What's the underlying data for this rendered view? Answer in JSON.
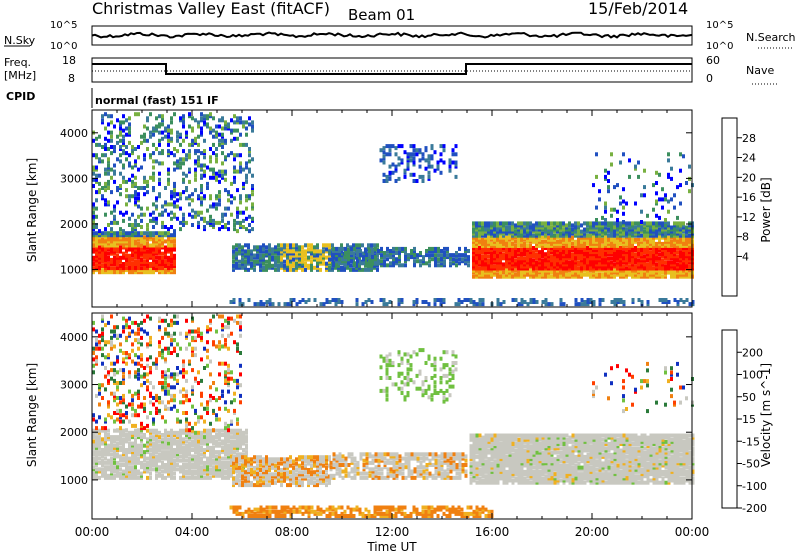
{
  "header": {
    "title": "Christmas Valley East (fitACF)",
    "beam": "Beam 01",
    "date": "15/Feb/2014"
  },
  "strip": {
    "nsky_label": "N.Sky",
    "nsky_ticks": [
      "10^5",
      "10^0"
    ],
    "nsearch_label": "N.Search",
    "nsearch_ticks": [
      "10^5",
      "10^0"
    ],
    "freq_label": "Freq.",
    "freq_unit": "[MHz]",
    "freq_ticks": [
      "18",
      "8"
    ],
    "nave_label": "Nave",
    "nave_ticks": [
      "60",
      "0"
    ],
    "cpid_label": "CPID",
    "cpid_value": "normal (fast) 151 IF"
  },
  "chart_data": [
    {
      "type": "heatmap",
      "name": "power",
      "ylabel": "Slant Range [km]",
      "yticks": [
        "4000",
        "3000",
        "2000",
        "1000"
      ],
      "ylim": [
        180,
        4500
      ],
      "xlim_hours": [
        0,
        24
      ],
      "colorbar": {
        "label": "Power [dB]",
        "ticks": [
          "28",
          "24",
          "20",
          "16",
          "12",
          "8",
          "4"
        ],
        "colors": [
          "#0000ff",
          "#2050c0",
          "#3a7a9a",
          "#3c8f5e",
          "#78b040",
          "#e8c020",
          "#f08010",
          "#ff3000",
          "#ff0000"
        ]
      }
    },
    {
      "type": "heatmap",
      "name": "velocity",
      "ylabel": "Slant Range [km]",
      "yticks": [
        "4000",
        "3000",
        "2000",
        "1000"
      ],
      "ylim": [
        180,
        4500
      ],
      "xlim_hours": [
        0,
        24
      ],
      "colorbar": {
        "label": "Velocity [m s^-1]",
        "ticks": [
          "200",
          "100",
          "50",
          "15",
          "-15",
          "-50",
          "-100",
          "-200"
        ],
        "colors": [
          "#1030c0",
          "#2a7a3a",
          "#70c040",
          "#c8c8c0",
          "#f0b020",
          "#f08010",
          "#ff4000",
          "#ff0000"
        ]
      }
    }
  ],
  "xaxis": {
    "ticks": [
      "00:00",
      "04:00",
      "08:00",
      "12:00",
      "16:00",
      "20:00",
      "00:00"
    ],
    "label": "Time UT"
  },
  "colors": {
    "grid": "#000000",
    "low_scatter": "#f0a000"
  }
}
